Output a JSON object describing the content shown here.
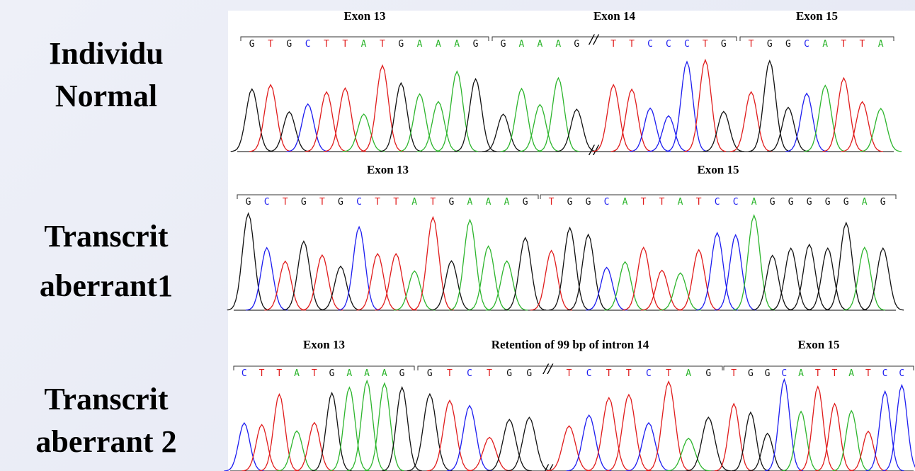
{
  "rows": [
    {
      "label": [
        "Individu",
        "Normal"
      ],
      "segments": [
        {
          "title": "Exon 13",
          "bases": [
            "GTGCTTATGAAAG"
          ]
        },
        {
          "title": "Exon 14",
          "bases": [
            "GAAAG",
            "TTCCCTG"
          ]
        },
        {
          "title": "Exon 15",
          "bases": [
            "TGGCATTA"
          ]
        }
      ]
    },
    {
      "label": [
        "Transcrit",
        "aberrant1"
      ],
      "segments": [
        {
          "title": "Exon 13",
          "bases": [
            "GCTGTGCTTATGAAAG"
          ]
        },
        {
          "title": "Exon 15",
          "bases": [
            "TGGCATTATCCAGGGGGAG"
          ]
        }
      ]
    },
    {
      "label": [
        "Transcrit",
        "aberrant 2"
      ],
      "segments": [
        {
          "title": "Exon 13",
          "bases": [
            "CTTATGAAAG"
          ]
        },
        {
          "title": "Retention of 99 bp of intron 14",
          "bases": [
            "GTCTGG",
            "TCTTCTAG"
          ]
        },
        {
          "title": "Exon 15",
          "bases": [
            "TGGCATTATCC"
          ]
        }
      ]
    }
  ]
}
